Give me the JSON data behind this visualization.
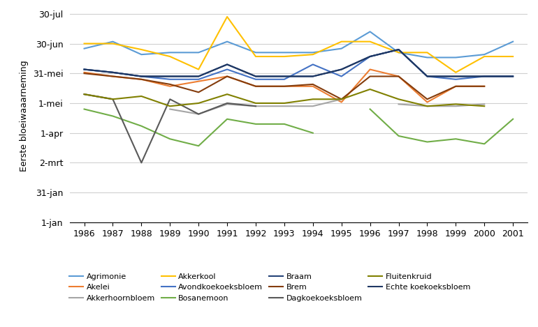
{
  "years": [
    1986,
    1987,
    1988,
    1989,
    1990,
    1991,
    1992,
    1993,
    1994,
    1995,
    1996,
    1997,
    1998,
    1999,
    2000,
    2001
  ],
  "series": [
    {
      "name": "Agrimonie",
      "color": "#5B9BD5",
      "values": [
        176,
        183,
        170,
        172,
        172,
        183,
        172,
        172,
        172,
        176,
        193,
        172,
        167,
        167,
        170,
        183
      ]
    },
    {
      "name": "Akelei",
      "color": "#ED7D31",
      "values": [
        152,
        148,
        145,
        138,
        143,
        148,
        138,
        138,
        138,
        122,
        155,
        148,
        122,
        138,
        138,
        null
      ]
    },
    {
      "name": "Akkerhoornbloem",
      "color": "#A5A5A5",
      "values": [
        130,
        125,
        null,
        115,
        110,
        120,
        118,
        118,
        118,
        125,
        null,
        120,
        118,
        118,
        120,
        null
      ]
    },
    {
      "name": "Akkerkool",
      "color": "#FFC000",
      "values": [
        181,
        181,
        175,
        168,
        155,
        208,
        168,
        168,
        170,
        183,
        183,
        172,
        172,
        152,
        168,
        168
      ]
    },
    {
      "name": "Avondkoekoeksbloem",
      "color": "#4472C4",
      "values": [
        155,
        152,
        148,
        145,
        145,
        155,
        145,
        145,
        160,
        148,
        168,
        175,
        148,
        145,
        148,
        148
      ]
    },
    {
      "name": "Bosanemoon",
      "color": "#70AD47",
      "values": [
        115,
        108,
        98,
        85,
        78,
        105,
        100,
        100,
        91,
        null,
        115,
        88,
        82,
        85,
        80,
        105
      ]
    },
    {
      "name": "Braam",
      "color": "#264478",
      "values": [
        155,
        152,
        148,
        148,
        148,
        160,
        148,
        148,
        148,
        155,
        168,
        175,
        148,
        148,
        148,
        148
      ]
    },
    {
      "name": "Brem",
      "color": "#843C0C",
      "values": [
        151,
        148,
        145,
        140,
        132,
        148,
        138,
        138,
        140,
        125,
        148,
        148,
        125,
        138,
        138,
        null
      ]
    },
    {
      "name": "Dagkoekoeksbloem",
      "color": "#595959",
      "values": [
        130,
        125,
        61,
        125,
        110,
        121,
        118,
        null,
        null,
        null,
        null,
        null,
        null,
        null,
        null,
        null
      ]
    },
    {
      "name": "Fluitenkruid",
      "color": "#808000",
      "values": [
        130,
        125,
        128,
        118,
        121,
        130,
        121,
        121,
        125,
        125,
        135,
        125,
        118,
        120,
        118,
        null
      ]
    },
    {
      "name": "Echte koekoeksbloem",
      "color": "#1F3864",
      "values": [
        155,
        152,
        148,
        148,
        148,
        160,
        148,
        148,
        148,
        155,
        168,
        175,
        148,
        148,
        148,
        148
      ]
    }
  ],
  "yticks": [
    1,
    31,
    61,
    91,
    121,
    151,
    181,
    211
  ],
  "ytick_labels": [
    "1-jan",
    "31-jan",
    "2-mrt",
    "1-apr",
    "1-mei",
    "31-mei",
    "30-jun",
    "30-jul"
  ],
  "ylabel": "Eerste bloeiwaaarneming",
  "ylim": [
    1,
    215
  ],
  "xlim": [
    1985.5,
    2001.5
  ],
  "background_color": "#ffffff"
}
